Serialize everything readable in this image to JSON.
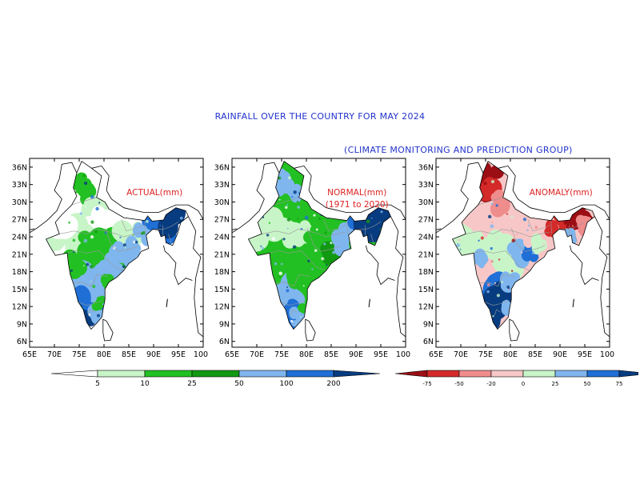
{
  "title": "RAINFALL OVER THE COUNTRY FOR MAY 2024",
  "subtitle": "(CLIMATE MONITORING AND PREDICTION GROUP)",
  "axes": {
    "lat_ticks": [
      "36N",
      "33N",
      "30N",
      "27N",
      "24N",
      "21N",
      "18N",
      "15N",
      "12N",
      "9N",
      "6N"
    ],
    "lon_ticks": [
      "65E",
      "70E",
      "75E",
      "80E",
      "85E",
      "90E",
      "95E",
      "100E"
    ]
  },
  "panels": [
    {
      "id": "actual",
      "label_line1": "ACTUAL(mm)",
      "label_line2": ""
    },
    {
      "id": "normal",
      "label_line1": "NORMAL(mm)",
      "label_line2": "(1971 to 2020)"
    },
    {
      "id": "anomaly",
      "label_line1": "ANOMALY(mm)",
      "label_line2": ""
    }
  ],
  "rain_colorbar": {
    "labels": [
      "5",
      "10",
      "25",
      "50",
      "100",
      "200"
    ],
    "colors": [
      "#ffffff",
      "#c8f5c8",
      "#22c022",
      "#119911",
      "#7fb6ee",
      "#1f6fd6",
      "#083c80"
    ]
  },
  "anomaly_colorbar": {
    "labels": [
      "-75",
      "-50",
      "-20",
      "0",
      "25",
      "50",
      "75"
    ],
    "colors": [
      "#9b0e14",
      "#d42a2a",
      "#ef8c8c",
      "#f7c7c7",
      "#c8f5c8",
      "#7fb6ee",
      "#1f6fd6",
      "#083c80"
    ]
  },
  "colors": {
    "title": "#2233cc",
    "panel_label": "#dd2222"
  }
}
